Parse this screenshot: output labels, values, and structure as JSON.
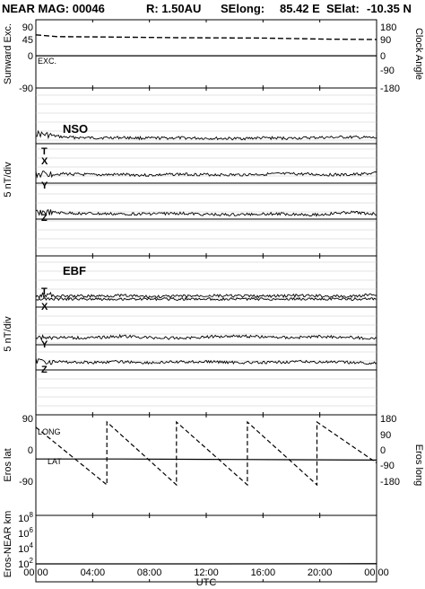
{
  "header": {
    "title_left": "NEAR MAG: 00046",
    "r_label": "R: 1.50AU",
    "selong_label": "SElong:",
    "selong_value": "85.42 E",
    "selat_label": "SElat:",
    "selat_value": "-10.35 N"
  },
  "chart_data": [
    {
      "type": "line",
      "panel": "sunward",
      "ylabel": "Sunward Exc.",
      "ylabel_right": "Clock Angle",
      "left_ticks": [
        "90",
        "45",
        "0",
        "-90"
      ],
      "right_ticks": [
        "180",
        "90",
        "0",
        "-90",
        "-180"
      ],
      "annotation": "EXC.",
      "series": [
        {
          "x": [
            0.0,
            24.0
          ],
          "y": [
            -0.3,
            -0.3
          ],
          "style": "solid"
        },
        {
          "x": [
            0.0,
            1.5,
            5.0,
            10.0,
            16.0,
            20.5,
            24.0
          ],
          "y": [
            58,
            53,
            52,
            50,
            49,
            46,
            45
          ],
          "style": "dashed"
        }
      ]
    },
    {
      "type": "line",
      "panel": "nso",
      "title": "NSO",
      "ylabel": "5 nT/div",
      "components": [
        "T",
        "X",
        "Y",
        "Z"
      ],
      "series": [
        {
          "x": [
            0,
            2,
            4,
            6,
            8,
            10,
            12,
            14,
            16,
            18,
            20,
            22,
            24
          ],
          "y": [
            2.8,
            1.8,
            1.6,
            1.7,
            1.5,
            1.6,
            1.5,
            1.4,
            1.6,
            1.5,
            1.7,
            1.8,
            1.6
          ]
        },
        {
          "x": [
            0,
            2,
            4,
            6,
            8,
            10,
            12,
            14,
            16,
            18,
            20,
            22,
            24
          ],
          "y": [
            2.5,
            2.6,
            2.3,
            2.4,
            2.2,
            2.5,
            2.4,
            2.3,
            2.5,
            2.6,
            2.4,
            2.3,
            2.8
          ]
        },
        {
          "x": [
            0,
            2,
            4,
            6,
            8,
            10,
            12,
            14,
            16,
            18,
            20,
            22,
            24
          ],
          "y": [
            2.0,
            1.7,
            1.5,
            1.4,
            1.5,
            1.6,
            1.3,
            1.2,
            1.5,
            1.4,
            1.2,
            1.9,
            1.4
          ]
        }
      ]
    },
    {
      "type": "line",
      "panel": "ebf",
      "title": "EBF",
      "ylabel": "5 nT/div",
      "components": [
        "T",
        "X",
        "Y",
        "Z"
      ],
      "series": [
        {
          "x": [
            0,
            2,
            4,
            6,
            8,
            10,
            12,
            14,
            16,
            18,
            20,
            22,
            24
          ],
          "y": [
            3.5,
            3.0,
            3.1,
            3.2,
            2.9,
            3.0,
            3.2,
            3.1,
            3.0,
            3.2,
            3.1,
            2.9,
            3.6
          ]
        },
        {
          "x": [
            0,
            2,
            4,
            6,
            8,
            10,
            12,
            14,
            16,
            18,
            20,
            22,
            24
          ],
          "y": [
            2.2,
            2.0,
            1.9,
            2.4,
            2.0,
            1.8,
            2.2,
            2.5,
            2.2,
            2.0,
            2.3,
            2.1,
            1.6
          ]
        },
        {
          "x": [
            0,
            2,
            4,
            6,
            8,
            10,
            12,
            14,
            16,
            18,
            20,
            22,
            24
          ],
          "y": [
            2.6,
            2.2,
            2.1,
            2.3,
            2.0,
            2.2,
            2.3,
            2.1,
            2.0,
            2.3,
            2.2,
            2.1,
            1.8
          ]
        }
      ]
    },
    {
      "type": "line",
      "panel": "eros",
      "ylabel": "Eros lat",
      "ylabel_right": "Eros long",
      "left_ticks": [
        "90",
        "0",
        "-90"
      ],
      "right_ticks": [
        "180",
        "90",
        "0",
        "-90",
        "-180"
      ],
      "series_labels": [
        "LONG",
        "LAT"
      ],
      "series": [
        {
          "name": "LONG",
          "style": "dashed",
          "x": [
            0.0,
            5.0,
            5.0,
            9.9,
            9.9,
            14.9,
            14.9,
            19.8,
            19.8,
            24.0
          ],
          "y": [
            150,
            -180,
            180,
            -180,
            180,
            -180,
            180,
            -180,
            180,
            -54
          ]
        },
        {
          "name": "LAT",
          "style": "solid",
          "x": [
            0.0,
            6.0,
            12.0,
            18.0,
            24.0
          ],
          "y": [
            -16,
            -16,
            -17,
            -18,
            -19
          ]
        }
      ]
    },
    {
      "type": "line",
      "panel": "range",
      "ylabel": "Eros-NEAR km",
      "ylim": [
        1,
        100000000
      ],
      "yscale": "log",
      "tick_values": [
        100,
        10000,
        1000000,
        100000000
      ],
      "series": [
        {
          "x": [
            0,
            12,
            24
          ],
          "y": [
            130,
            130,
            140
          ]
        }
      ]
    }
  ],
  "xaxis": {
    "label": "UTC",
    "ticks": [
      {
        "hour": 0,
        "label": "00:00"
      },
      {
        "hour": 4,
        "label": "04:00"
      },
      {
        "hour": 8,
        "label": "08:00"
      },
      {
        "hour": 12,
        "label": "12:00"
      },
      {
        "hour": 16,
        "label": "16:00"
      },
      {
        "hour": 20,
        "label": "20:00"
      },
      {
        "hour": 24,
        "label": "00:00"
      }
    ]
  }
}
